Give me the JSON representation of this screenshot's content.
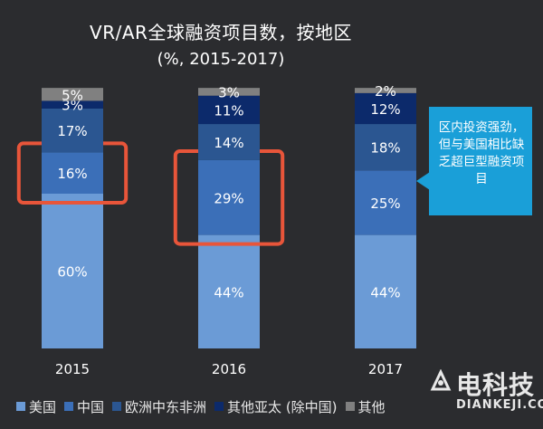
{
  "chart_data": {
    "type": "bar",
    "stacked": true,
    "title": "VR/AR全球融资项目数，按地区",
    "subtitle": "(%, 2015-2017)",
    "categories": [
      "2015",
      "2016",
      "2017"
    ],
    "ylim": [
      0,
      100
    ],
    "series": [
      {
        "name": "美国",
        "values": [
          60,
          44,
          44
        ],
        "color": "#6b9bd6",
        "labels": [
          "60%",
          "44%",
          "44%"
        ]
      },
      {
        "name": "中国",
        "values": [
          16,
          29,
          25
        ],
        "color": "#3b6fb8",
        "labels": [
          "16%",
          "29%",
          "25%"
        ]
      },
      {
        "name": "欧洲中东非洲",
        "values": [
          17,
          14,
          18
        ],
        "color": "#2b5691",
        "labels": [
          "17%",
          "14%",
          "18%"
        ]
      },
      {
        "name": "其他亚太 (除中国)",
        "values": [
          3,
          11,
          12
        ],
        "color": "#0c2a6b",
        "labels": [
          "3%",
          "11%",
          "12%"
        ]
      },
      {
        "name": "其他",
        "values": [
          5,
          3,
          2
        ],
        "color": "#808080",
        "labels": [
          "5%",
          "3%",
          "2%"
        ]
      }
    ],
    "highlight": {
      "series": "中国",
      "categories": [
        "2015",
        "2016"
      ],
      "color": "#e8553a"
    },
    "legend_position": "bottom",
    "grid": false
  },
  "callout": {
    "text": "区内投资强劲，但与美国相比缺乏超巨型融资项目"
  },
  "watermark": {
    "name": "电科技",
    "sub": "DIANKEJI.COM"
  }
}
